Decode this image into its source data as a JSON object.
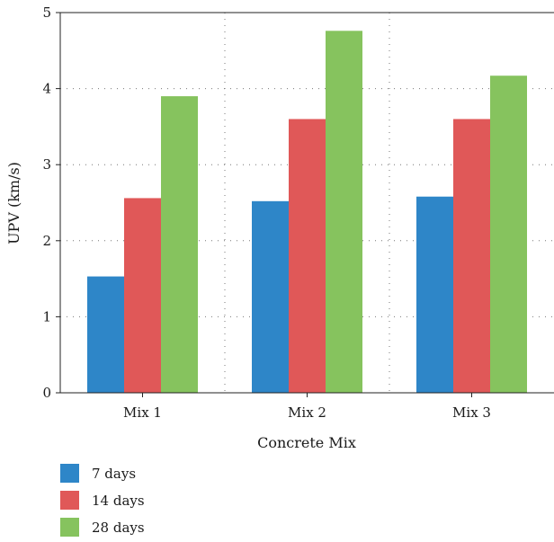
{
  "chart_data": {
    "type": "bar",
    "categories": [
      "Mix 1",
      "Mix 2",
      "Mix 3"
    ],
    "series": [
      {
        "name": "7 days",
        "values": [
          1.53,
          2.52,
          2.58
        ],
        "color": "#2e86c8"
      },
      {
        "name": "14 days",
        "values": [
          2.56,
          3.6,
          3.6
        ],
        "color": "#e05858"
      },
      {
        "name": "28 days",
        "values": [
          3.9,
          4.76,
          4.17
        ],
        "color": "#86c35e"
      }
    ],
    "xlabel": "Concrete Mix",
    "ylabel": "UPV (km/s)",
    "ylim": [
      0,
      5
    ],
    "yticks": [
      "0",
      "1",
      "2",
      "3",
      "4",
      "5"
    ],
    "grid": "dotted",
    "legend_position": "bottom-left"
  }
}
